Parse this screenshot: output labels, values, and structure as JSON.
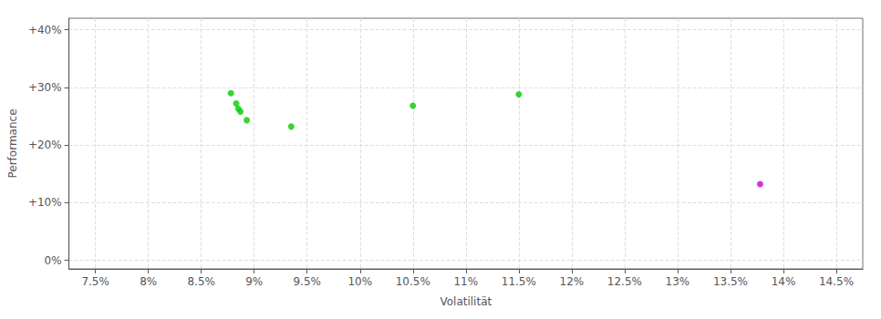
{
  "chart_data": {
    "type": "scatter",
    "xlabel": "Volatilität",
    "ylabel": "Performance",
    "series": [
      {
        "color": "#00cc00",
        "x": [
          8.78,
          8.83,
          8.85,
          8.87,
          8.93,
          9.35,
          10.5,
          11.5
        ],
        "values": [
          29.0,
          27.2,
          26.3,
          25.8,
          24.3,
          23.2,
          26.8,
          28.8
        ]
      },
      {
        "color": "#cc00cc",
        "x": [
          13.78
        ],
        "values": [
          13.2
        ]
      }
    ],
    "xlim": [
      7.25,
      14.75
    ],
    "ylim": [
      -1.5,
      42
    ],
    "xticks": [
      {
        "value": 7.5,
        "label": "7.5%"
      },
      {
        "value": 8.0,
        "label": "8%"
      },
      {
        "value": 8.5,
        "label": "8.5%"
      },
      {
        "value": 9.0,
        "label": "9%"
      },
      {
        "value": 9.5,
        "label": "9.5%"
      },
      {
        "value": 10.0,
        "label": "10%"
      },
      {
        "value": 10.5,
        "label": "10.5%"
      },
      {
        "value": 11.0,
        "label": "11%"
      },
      {
        "value": 11.5,
        "label": "11.5%"
      },
      {
        "value": 12.0,
        "label": "12%"
      },
      {
        "value": 12.5,
        "label": "12.5%"
      },
      {
        "value": 13.0,
        "label": "13%"
      },
      {
        "value": 13.5,
        "label": "13.5%"
      },
      {
        "value": 14.0,
        "label": "14%"
      },
      {
        "value": 14.5,
        "label": "14.5%"
      }
    ],
    "yticks": [
      {
        "value": 0,
        "label": "0%"
      },
      {
        "value": 10,
        "label": "+10%"
      },
      {
        "value": 20,
        "label": "+20%"
      },
      {
        "value": 30,
        "label": "+30%"
      },
      {
        "value": 40,
        "label": "+40%"
      }
    ],
    "grid": true
  }
}
